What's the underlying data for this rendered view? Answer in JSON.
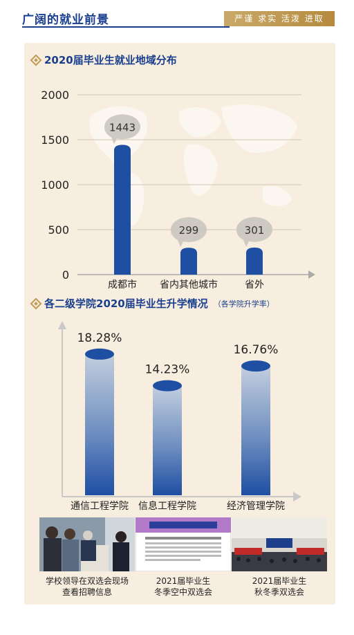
{
  "header": {
    "title": "广阔的就业前景",
    "motto": "严谨 求实 活泼 进取"
  },
  "section1": {
    "title": "2020届毕业生就业地域分布"
  },
  "section2": {
    "title": "各二级学院2020届毕业生升学情况",
    "subtitle": "（各学院升学率）"
  },
  "chart_data": [
    {
      "type": "bar",
      "categories": [
        "成都市",
        "省内其他城市",
        "省外"
      ],
      "values": [
        1443,
        299,
        301
      ],
      "value_labels": [
        "1443",
        "299",
        "301"
      ],
      "ylim": [
        0,
        2000
      ],
      "yticks": [
        "0",
        "500",
        "1000",
        "1500",
        "2000"
      ],
      "grid": true,
      "bar_color": "#1f4fa3"
    },
    {
      "type": "bar",
      "categories": [
        "通信工程学院",
        "信息工程学院",
        "经济管理学院"
      ],
      "values": [
        18.28,
        14.23,
        16.76
      ],
      "value_labels": [
        "18.28%",
        "14.23%",
        "16.76%"
      ],
      "ylim": [
        0,
        22
      ],
      "grid": false,
      "bar_color": "#1f4fa3"
    }
  ],
  "photos": [
    {
      "caption_line1": "学校领导在双选会现场",
      "caption_line2": "查看招聘信息"
    },
    {
      "caption_line1": "2021届毕业生",
      "caption_line2": "冬季空中双选会"
    },
    {
      "caption_line1": "2021届毕业生",
      "caption_line2": "秋冬季双选会"
    }
  ]
}
